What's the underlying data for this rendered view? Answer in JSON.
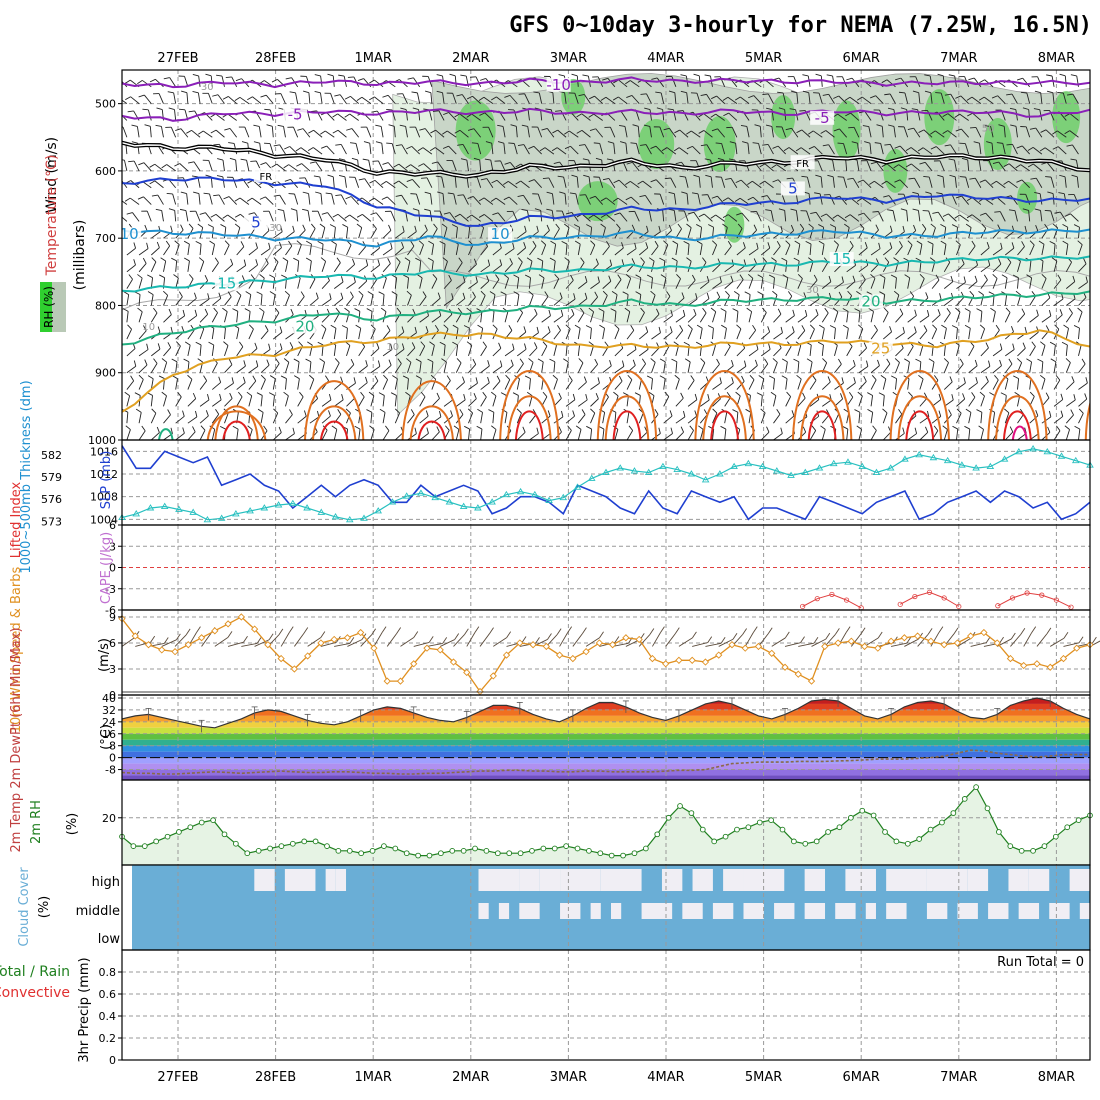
{
  "title": "GFS 0~10day 3-hourly for NEMA (7.25W, 16.5N)",
  "dates": [
    "27FEB",
    "28FEB",
    "1MAR",
    "2MAR",
    "3MAR",
    "4MAR",
    "5MAR",
    "6MAR",
    "7MAR",
    "8MAR"
  ],
  "colors": {
    "frame": "#000000",
    "grid": "#999999",
    "purple": "#8a1fb8",
    "blue": "#1f3fd0",
    "sky": "#1e90d0",
    "teal": "#18b8b0",
    "green": "#20b080",
    "orange": "#e0a020",
    "darkorange": "#e07020",
    "red": "#e02020",
    "magenta": "#e01080",
    "slp": "#1f3fd0",
    "thickness": "#28c0c0",
    "wind": "#e09020",
    "rh": "#208020",
    "cloud": "#6aaed6",
    "cloudGap": "#f0eef4"
  },
  "chart_data": [
    {
      "id": "upper",
      "type": "line",
      "title": "Wind (m/s), Temperature (°C), RH (%)",
      "ylabel": "(millibars)",
      "ylim": [
        1000,
        450
      ],
      "yticks": [
        500,
        600,
        700,
        800,
        900,
        1000
      ],
      "left_labels": {
        "wind": "Wind (m/s)",
        "temp": "Temperature (°C)",
        "rh": "RH (%)"
      },
      "contour_labels": [
        {
          "text": "-10",
          "color": "purple",
          "t": 3.9,
          "p": 478
        },
        {
          "text": "-5",
          "color": "purple",
          "t": 1.2,
          "p": 522
        },
        {
          "text": "-5",
          "color": "purple",
          "t": 6.6,
          "p": 527
        },
        {
          "text": "FR",
          "color": "black",
          "t": 0.9,
          "p": 612
        },
        {
          "text": "FR",
          "color": "black",
          "t": 6.4,
          "p": 593
        },
        {
          "text": "5",
          "color": "blue",
          "t": 0.8,
          "p": 683
        },
        {
          "text": "5",
          "color": "blue",
          "t": 6.3,
          "p": 632
        },
        {
          "text": "10",
          "color": "sky",
          "t": -0.5,
          "p": 700
        },
        {
          "text": "10",
          "color": "sky",
          "t": 3.3,
          "p": 700
        },
        {
          "text": "15",
          "color": "teal",
          "t": 0.5,
          "p": 773
        },
        {
          "text": "15",
          "color": "teal",
          "t": 6.8,
          "p": 737
        },
        {
          "text": "20",
          "color": "green",
          "t": 1.3,
          "p": 837
        },
        {
          "text": "20",
          "color": "green",
          "t": 7.1,
          "p": 800
        },
        {
          "text": "25",
          "color": "orange",
          "t": 7.2,
          "p": 870
        },
        {
          "text": "30",
          "color": "gray",
          "t": 0.3,
          "p": 478
        },
        {
          "text": "30",
          "color": "gray",
          "t": 1.0,
          "p": 688
        },
        {
          "text": "10",
          "color": "gray",
          "t": -1.1,
          "p": 772
        },
        {
          "text": "10",
          "color": "gray",
          "t": -0.3,
          "p": 835
        },
        {
          "text": "10",
          "color": "gray",
          "t": 2.2,
          "p": 865
        },
        {
          "text": "30",
          "color": "gray",
          "t": 6.5,
          "p": 780
        },
        {
          "text": "50",
          "color": "gray",
          "t": 8.3,
          "p": 540
        }
      ],
      "isotherms": [
        {
          "name": "-10",
          "color": "purple",
          "p": [
            472,
            472,
            470,
            470,
            469,
            468,
            470,
            468,
            468,
            466,
            466,
            465,
            467,
            466,
            468,
            470,
            469,
            469,
            468,
            470
          ]
        },
        {
          "name": "-5",
          "color": "purple",
          "p": [
            520,
            522,
            516,
            513,
            514,
            512,
            513,
            511,
            513,
            512,
            514,
            513,
            512,
            514,
            512,
            514,
            513,
            512,
            518,
            510
          ]
        },
        {
          "name": "0",
          "color": "black",
          "p": [
            560,
            564,
            568,
            574,
            585,
            600,
            606,
            604,
            596,
            592,
            588,
            594,
            590,
            586,
            580,
            584,
            578,
            580,
            584,
            600
          ]
        },
        {
          "name": "5",
          "color": "blue",
          "p": [
            620,
            610,
            614,
            616,
            624,
            650,
            670,
            680,
            672,
            664,
            658,
            656,
            650,
            646,
            640,
            644,
            636,
            640,
            644,
            642
          ]
        },
        {
          "name": "10",
          "color": "sky",
          "p": [
            690,
            690,
            696,
            698,
            704,
            708,
            700,
            708,
            702,
            696,
            694,
            700,
            698,
            692,
            690,
            696,
            696,
            690,
            690,
            688
          ]
        },
        {
          "name": "15",
          "color": "teal",
          "p": [
            780,
            770,
            770,
            760,
            758,
            756,
            752,
            752,
            750,
            746,
            744,
            742,
            740,
            738,
            736,
            738,
            734,
            730,
            730,
            728
          ]
        },
        {
          "name": "20",
          "color": "green",
          "p": [
            860,
            838,
            832,
            820,
            814,
            818,
            812,
            808,
            806,
            800,
            796,
            798,
            794,
            790,
            790,
            794,
            792,
            786,
            784,
            780
          ]
        },
        {
          "name": "25",
          "color": "orange",
          "p": [
            960,
            900,
            880,
            870,
            860,
            850,
            846,
            840,
            852,
            858,
            862,
            860,
            858,
            856,
            854,
            856,
            860,
            850,
            836,
            862
          ]
        }
      ],
      "wind_barbs": "3-hourly barbs at 1000-475 mb"
    },
    {
      "id": "slp",
      "type": "line",
      "left_label": "SLP (mb)",
      "right_label": "1000~500mb Thickness (dm)",
      "slp_ticks": [
        1004,
        1008,
        1012,
        1016
      ],
      "thick_ticks": [
        573,
        576,
        579,
        582
      ],
      "slp_ylim": [
        1003,
        1018
      ],
      "thick_ylim": [
        572.5,
        584
      ],
      "slp": [
        1017,
        1013,
        1013,
        1016,
        1015,
        1014,
        1015,
        1010,
        1011,
        1012,
        1010,
        1009,
        1006,
        1008,
        1010,
        1008,
        1010,
        1011,
        1010,
        1007,
        1007,
        1010,
        1008,
        1009,
        1010,
        1009,
        1005,
        1006,
        1008,
        1008,
        1007,
        1005,
        1010,
        1009,
        1008,
        1006,
        1005,
        1009,
        1006,
        1005,
        1009,
        1008,
        1007,
        1008,
        1004,
        1006,
        1006,
        1005,
        1004,
        1008,
        1007,
        1006,
        1005,
        1007,
        1008,
        1009,
        1004,
        1005,
        1007,
        1008,
        1009,
        1007,
        1009,
        1008,
        1006,
        1007,
        1004,
        1005,
        1007
      ],
      "thickness": [
        573.5,
        574,
        574.8,
        575,
        574.6,
        574.2,
        573.2,
        573.4,
        574,
        574.4,
        574.8,
        575.2,
        575.4,
        574.8,
        574.2,
        573.6,
        573.2,
        573.4,
        574.4,
        575.6,
        576.4,
        576.8,
        576.2,
        575.6,
        575,
        574.8,
        575.6,
        576.6,
        577,
        576.6,
        575.8,
        576.2,
        577.6,
        578.8,
        579.6,
        580.2,
        579.8,
        579.6,
        580.4,
        580,
        579.4,
        578.6,
        579.4,
        580.4,
        580.8,
        580.4,
        579.8,
        579.2,
        579.6,
        580.2,
        580.8,
        581,
        580.4,
        579.6,
        580.2,
        581.4,
        582,
        581.6,
        581.2,
        580.6,
        580.2,
        580.4,
        581.4,
        582.4,
        582.8,
        582.4,
        581.8,
        581.2,
        580.6
      ]
    },
    {
      "id": "cape",
      "type": "line",
      "left_label": "Lifted Index",
      "right_label": "CAPE (J/kg)",
      "ylim": [
        -6,
        6
      ],
      "yticks": [
        -6,
        -3,
        0,
        3,
        6
      ],
      "ytick_labels": [
        "6",
        "3",
        "0",
        "-3",
        "-6"
      ],
      "li_segments": [
        {
          "t": [
            6.4,
            6.55,
            6.7,
            6.85,
            7.0
          ],
          "v": [
            -5.5,
            -4.4,
            -3.8,
            -4.6,
            -5.7
          ]
        },
        {
          "t": [
            7.4,
            7.55,
            7.7,
            7.85,
            8.0
          ],
          "v": [
            -5.2,
            -4.1,
            -3.5,
            -4.3,
            -5.5
          ]
        },
        {
          "t": [
            8.4,
            8.55,
            8.7,
            8.85,
            9.0,
            9.15
          ],
          "v": [
            -5.4,
            -4.3,
            -3.6,
            -3.9,
            -4.6,
            -5.6
          ]
        }
      ]
    },
    {
      "id": "wind10",
      "type": "line",
      "left_label": "10m Wind Speed & Barbs",
      "unit": "(m/s)",
      "ylim": [
        0,
        9.8
      ],
      "yticks": [
        0,
        3,
        6,
        9
      ],
      "speed": [
        8.8,
        6.8,
        5.8,
        5.2,
        5,
        5.8,
        6.6,
        7.4,
        8.2,
        9,
        7.6,
        5.8,
        4.2,
        3,
        4.5,
        6,
        6.4,
        6.6,
        7.2,
        5.4,
        1.6,
        1.6,
        3.6,
        5.4,
        5.2,
        3.8,
        2.6,
        0.4,
        2.2,
        4.6,
        6,
        5.8,
        5.6,
        4.6,
        4.2,
        5,
        6,
        5.8,
        6.6,
        6.4,
        4.2,
        3.6,
        4,
        4,
        3.8,
        4.6,
        5.8,
        5.4,
        5.6,
        4.8,
        3.2,
        2.4,
        1.6,
        5.6,
        6,
        6.2,
        5.6,
        5.4,
        6.2,
        6.6,
        6.8,
        6.2,
        5.8,
        6,
        6.8,
        7.2,
        6,
        4.2,
        3.4,
        3.6,
        3.2,
        4.2,
        5.4,
        5.8
      ]
    },
    {
      "id": "t2m",
      "type": "area",
      "left_label": "2m Temp 2m DewPt (6hr Min/Max)",
      "unit": "(°C)",
      "ylim": [
        -15,
        42
      ],
      "yticks": [
        -8,
        0,
        8,
        16,
        24,
        32,
        40
      ],
      "temp": [
        26,
        28,
        29,
        27,
        25,
        23,
        21,
        20,
        23,
        26,
        30,
        32,
        31,
        28,
        25,
        23,
        22,
        24,
        28,
        32,
        34,
        33,
        30,
        27,
        25,
        24,
        27,
        31,
        35,
        35,
        33,
        29,
        26,
        24,
        28,
        33,
        37,
        37,
        34,
        30,
        27,
        25,
        28,
        32,
        36,
        38,
        36,
        32,
        28,
        26,
        29,
        33,
        38,
        39,
        38,
        33,
        28,
        26,
        29,
        34,
        37,
        38,
        36,
        31,
        27,
        26,
        29,
        35,
        38,
        40,
        38,
        33,
        29,
        26
      ],
      "dewpt": [
        -10,
        -10.5,
        -10.5,
        -11,
        -11,
        -10.5,
        -10,
        -9.5,
        -10,
        -10.5,
        -10,
        -9.5,
        -9,
        -9.5,
        -10,
        -10,
        -9.5,
        -9.5,
        -10,
        -10.5,
        -10.5,
        -11,
        -11,
        -10.5,
        -10.5,
        -10,
        -9.5,
        -9,
        -9,
        -8.5,
        -8.5,
        -9,
        -9,
        -9.5,
        -9.5,
        -9,
        -9,
        -9.5,
        -9.5,
        -9.5,
        -9.5,
        -9,
        -8.5,
        -8.5,
        -8,
        -6,
        -4,
        -3.5,
        -3,
        -3,
        -3,
        -2.5,
        -2.5,
        -2.5,
        -2.2,
        -2,
        -1.5,
        -1,
        -1,
        -1,
        -0.5,
        0,
        1,
        3,
        5,
        4.5,
        3,
        2,
        1,
        0.5,
        1,
        2,
        2,
        2
      ]
    },
    {
      "id": "rh2m",
      "type": "area",
      "left_label": "2m RH",
      "unit": "(%)",
      "ylim": [
        0,
        36
      ],
      "yticks": [
        20
      ],
      "rh": [
        12,
        8,
        8,
        10,
        12,
        14,
        16,
        18,
        19,
        13,
        9,
        5,
        6,
        7,
        8,
        9,
        10,
        10,
        8,
        6,
        6,
        5,
        6,
        8,
        7,
        5,
        4,
        4,
        5,
        6,
        6,
        7,
        6,
        5,
        5,
        5,
        6,
        7,
        7,
        8,
        7,
        6,
        5,
        4,
        4,
        5,
        7,
        13,
        20,
        25,
        22,
        15,
        10,
        12,
        15,
        16,
        18,
        19,
        15,
        10,
        9,
        10,
        14,
        16,
        20,
        23,
        21,
        14,
        10,
        9,
        11,
        15,
        18,
        22,
        28,
        33,
        24,
        14,
        8,
        6,
        6,
        8,
        12,
        16,
        19,
        21
      ]
    },
    {
      "id": "cloud",
      "type": "heatmap",
      "left_label": "Cloud Cover",
      "unit": "(%)",
      "levels": [
        "high",
        "middle",
        "low"
      ],
      "high_gaps": [
        [
          12,
          14
        ],
        [
          15,
          17
        ],
        [
          16,
          18
        ],
        [
          19,
          20
        ],
        [
          20,
          21
        ],
        [
          34,
          38
        ],
        [
          36,
          38
        ],
        [
          38,
          40
        ],
        [
          40,
          42
        ],
        [
          42,
          45
        ],
        [
          44,
          46
        ],
        [
          46,
          49
        ],
        [
          48,
          50
        ],
        [
          52,
          54
        ],
        [
          55,
          57
        ],
        [
          58,
          60
        ],
        [
          60,
          64
        ],
        [
          66,
          68
        ],
        [
          70,
          73
        ],
        [
          74,
          78
        ],
        [
          78,
          82
        ],
        [
          82,
          84
        ],
        [
          86,
          88
        ],
        [
          88,
          90
        ],
        [
          92,
          94
        ]
      ],
      "mid_gaps": [
        [
          34,
          35
        ],
        [
          36,
          37
        ],
        [
          38,
          40
        ],
        [
          42,
          44
        ],
        [
          45,
          46
        ],
        [
          47,
          48
        ],
        [
          50,
          53
        ],
        [
          54,
          56
        ],
        [
          57,
          59
        ],
        [
          60,
          62
        ],
        [
          63,
          65
        ],
        [
          66,
          68
        ],
        [
          69,
          71
        ],
        [
          72,
          73
        ],
        [
          74,
          76
        ],
        [
          78,
          80
        ],
        [
          81,
          83
        ],
        [
          84,
          86
        ],
        [
          87,
          89
        ],
        [
          90,
          92
        ],
        [
          93,
          94
        ]
      ]
    },
    {
      "id": "precip",
      "type": "bar",
      "left_label": "Total / Rain",
      "left_label2": "Convective",
      "ylabel": "3hr Precip (mm)",
      "ylim": [
        0,
        1
      ],
      "yticks": [
        0,
        0.2,
        0.4,
        0.6,
        0.8
      ],
      "annotation": "Run Total = 0"
    }
  ]
}
